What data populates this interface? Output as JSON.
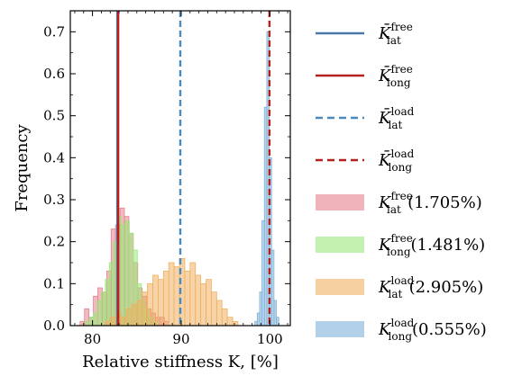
{
  "chart_data": {
    "type": "histogram",
    "xlabel": "Relative stiffness K, [%]",
    "ylabel": "Frequency",
    "xlim": [
      77.5,
      102.3
    ],
    "ylim": [
      0,
      0.75
    ],
    "x_ticks": [
      80,
      90,
      100
    ],
    "y_ticks": [
      0.0,
      0.1,
      0.2,
      0.3,
      0.4,
      0.5,
      0.6,
      0.7
    ],
    "legend_position": "outside-right",
    "vlines": [
      {
        "name": "K̄_lat^free",
        "x": 82.8,
        "color": "#4a79a8",
        "style": "solid"
      },
      {
        "name": "K̄_long^free",
        "x": 82.9,
        "color": "#b4211f",
        "style": "solid"
      },
      {
        "name": "K̄_lat^load",
        "x": 89.9,
        "color": "#4a8ac0",
        "style": "dashed"
      },
      {
        "name": "K̄_long^load",
        "x": 99.95,
        "color": "#b4211f",
        "style": "dashed"
      }
    ],
    "series": [
      {
        "name": "K_lat^free (1.705%)",
        "color": "#e8808e",
        "bins_start": 78.6,
        "bin_width": 0.5,
        "values": [
          0.01,
          0.04,
          0.02,
          0.07,
          0.09,
          0.08,
          0.13,
          0.23,
          0.24,
          0.28,
          0.26,
          0.22,
          0.15,
          0.09,
          0.07,
          0.04,
          0.03,
          0.02,
          0.02,
          0.01
        ]
      },
      {
        "name": "K_long^free (1.481%)",
        "color": "#9be87a",
        "bins_start": 79.2,
        "bin_width": 0.45,
        "values": [
          0.01,
          0.02,
          0.03,
          0.06,
          0.08,
          0.11,
          0.15,
          0.2,
          0.26,
          0.24,
          0.25,
          0.22,
          0.18,
          0.1,
          0.06,
          0.04,
          0.02,
          0.01
        ]
      },
      {
        "name": "K_lat^load (2.905%)",
        "color": "#f0b060",
        "bins_start": 81.4,
        "bin_width": 0.6,
        "values": [
          0.01,
          0.02,
          0.03,
          0.02,
          0.04,
          0.05,
          0.06,
          0.08,
          0.1,
          0.12,
          0.11,
          0.13,
          0.15,
          0.14,
          0.16,
          0.13,
          0.15,
          0.12,
          0.1,
          0.11,
          0.08,
          0.06,
          0.04,
          0.02,
          0.01
        ]
      },
      {
        "name": "K_long^load (0.555%)",
        "color": "#7fb2db",
        "bins_start": 98.3,
        "bin_width": 0.27,
        "values": [
          0.01,
          0.03,
          0.08,
          0.25,
          0.52,
          0.7,
          0.4,
          0.18,
          0.06,
          0.02
        ]
      }
    ]
  },
  "legend": [
    {
      "sym": "K̄",
      "sup": "free",
      "sub": "lat",
      "pct": ""
    },
    {
      "sym": "K̄",
      "sup": "free",
      "sub": "long",
      "pct": ""
    },
    {
      "sym": "K̄",
      "sup": "load",
      "sub": "lat",
      "pct": ""
    },
    {
      "sym": "K̄",
      "sup": "load",
      "sub": "long",
      "pct": ""
    },
    {
      "sym": "K",
      "sup": "free",
      "sub": "lat",
      "pct": "(1.705%)"
    },
    {
      "sym": "K",
      "sup": "free",
      "sub": "long",
      "pct": "(1.481%)"
    },
    {
      "sym": "K",
      "sup": "load",
      "sub": "lat",
      "pct": "(2.905%)"
    },
    {
      "sym": "K",
      "sup": "load",
      "sub": "long",
      "pct": "(0.555%)"
    }
  ]
}
